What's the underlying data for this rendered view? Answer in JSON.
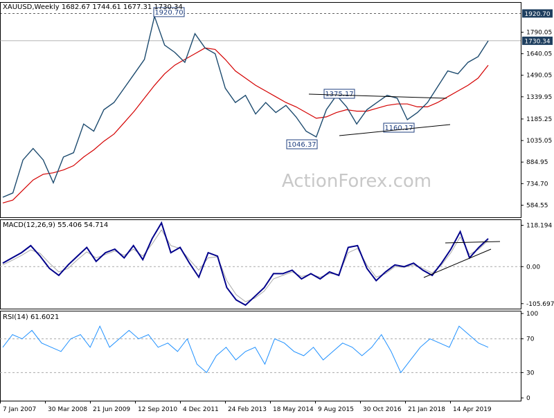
{
  "header": {
    "symbol_line": "XAUUSD,Weekly  1682.67 1744.61 1677.31 1730.34"
  },
  "watermark": "ActionForex.com",
  "colors": {
    "price": "#1c4a6e",
    "ma": "#d40000",
    "macd": "#00008b",
    "macd_signal": "#a9a9a9",
    "rsi": "#1e90ff",
    "grid": "#888888",
    "label_bg": "#1f3f5f"
  },
  "chart_data": [
    {
      "type": "line",
      "panel": "price",
      "title": "XAUUSD,Weekly",
      "ohlc_label": "1682.67 1744.61 1677.31 1730.34",
      "ylim": [
        500,
        2000
      ],
      "y_ticks": [
        "1920.70",
        "1790.05",
        "1730.34",
        "1640.05",
        "1490.05",
        "1339.95",
        "1185.25",
        "1035.05",
        "884.95",
        "734.70",
        "584.55"
      ],
      "x_ticks": [
        "7 Jan 2007",
        "30 Mar 2008",
        "21 Jun 2009",
        "12 Sep 2010",
        "4 Dec 2011",
        "24 Feb 2013",
        "18 May 2014",
        "9 Aug 2015",
        "30 Oct 2016",
        "21 Jan 2018",
        "14 Apr 2019"
      ],
      "x_points": [
        "7 Jan 2007",
        "Jul 2007",
        "Jan 2008",
        "30 Mar 2008",
        "Jul 2008",
        "Oct 2008",
        "Jan 2009",
        "21 Jun 2009",
        "Nov 2009",
        "Jan 2010",
        "Jun 2010",
        "12 Sep 2010",
        "Jan 2011",
        "Apr 2011",
        "Jul 2011",
        "Sep 2011",
        "4 Dec 2011",
        "Feb 2012",
        "Jun 2012",
        "Oct 2012",
        "Jan 2013",
        "24 Feb 2013",
        "Apr 2013",
        "Jun 2013",
        "Sep 2013",
        "Dec 2013",
        "18 May 2014",
        "Sep 2014",
        "Jan 2015",
        "Apr 2015",
        "9 Aug 2015",
        "Dec 2015",
        "Mar 2016",
        "Jul 2016",
        "30 Oct 2016",
        "Dec 2016",
        "Apr 2017",
        "Sep 2017",
        "21 Jan 2018",
        "Apr 2018",
        "Aug 2018",
        "Nov 2018",
        "14 Apr 2019",
        "Jun 2019",
        "Aug 2019",
        "Oct 2019",
        "Jan 2020",
        "Apr 2020",
        "Jun 2020"
      ],
      "series": [
        {
          "values": [
            640,
            670,
            900,
            980,
            900,
            740,
            920,
            950,
            1150,
            1100,
            1250,
            1300,
            1400,
            1500,
            1600,
            1900,
            1700,
            1650,
            1580,
            1780,
            1680,
            1640,
            1400,
            1300,
            1350,
            1220,
            1300,
            1230,
            1280,
            1200,
            1100,
            1060,
            1250,
            1350,
            1270,
            1150,
            1250,
            1300,
            1350,
            1330,
            1180,
            1230,
            1300,
            1410,
            1520,
            1500,
            1580,
            1620,
            1730
          ]
        },
        {
          "values": [
            600,
            620,
            690,
            760,
            800,
            810,
            830,
            860,
            920,
            970,
            1030,
            1080,
            1160,
            1240,
            1330,
            1420,
            1500,
            1560,
            1600,
            1640,
            1680,
            1670,
            1600,
            1520,
            1470,
            1420,
            1380,
            1340,
            1300,
            1270,
            1230,
            1190,
            1200,
            1230,
            1250,
            1240,
            1240,
            1260,
            1280,
            1290,
            1290,
            1270,
            1270,
            1300,
            1340,
            1380,
            1420,
            1470,
            1560
          ]
        }
      ],
      "horizontal_lines": [
        {
          "value": 1920.7,
          "label": "1920.70",
          "style": "dashed"
        },
        {
          "value": 1730.34,
          "label": "1730.34",
          "style": "solid"
        }
      ],
      "annotations": [
        {
          "text": "1920.70",
          "x": "12 Sep 2010",
          "y": 1920.7
        },
        {
          "text": "1375.17",
          "x": "Feb 2016",
          "y": 1375.17
        },
        {
          "text": "1160.17",
          "x": "Oct 2017",
          "y": 1160.17
        },
        {
          "text": "1046.37",
          "x": "Dec 2015",
          "y": 1046.37
        }
      ],
      "trendlines": [
        {
          "from": [
            "Feb 2016",
            1375.17
          ],
          "to": [
            "May 2019",
            1365
          ]
        },
        {
          "from": [
            "Jul 2015",
            1120
          ],
          "to": [
            "May 2019",
            1185
          ]
        }
      ]
    },
    {
      "type": "line",
      "panel": "macd",
      "title": "MACD(12,26,9) 55.406 54.714",
      "ylim": [
        -120,
        135
      ],
      "y_ticks": [
        "118.194",
        "0.00",
        "-105.697"
      ],
      "series": [
        {
          "values": [
            10,
            25,
            40,
            60,
            30,
            -5,
            -25,
            5,
            30,
            55,
            15,
            40,
            50,
            25,
            60,
            20,
            80,
            125,
            40,
            55,
            10,
            -30,
            40,
            30,
            -60,
            -95,
            -110,
            -85,
            -60,
            -20,
            -20,
            -10,
            -35,
            -20,
            -35,
            -15,
            -25,
            55,
            60,
            -5,
            -40,
            -15,
            5,
            0,
            10,
            -10,
            -25,
            10,
            50,
            100,
            25,
            55,
            80
          ]
        },
        {
          "values": [
            5,
            18,
            32,
            48,
            38,
            10,
            -15,
            -5,
            20,
            42,
            25,
            35,
            45,
            32,
            50,
            30,
            65,
            105,
            60,
            52,
            20,
            -10,
            25,
            28,
            -40,
            -80,
            -100,
            -90,
            -70,
            -35,
            -25,
            -15,
            -28,
            -22,
            -30,
            -20,
            -22,
            40,
            52,
            5,
            -30,
            -20,
            0,
            -2,
            5,
            -5,
            -18,
            5,
            40,
            85,
            35,
            50,
            75
          ]
        }
      ]
    },
    {
      "type": "line",
      "panel": "rsi",
      "title": "RSI(14) 61.6021",
      "ylim": [
        0,
        100
      ],
      "y_ticks": [
        "100",
        "70",
        "30",
        "0"
      ],
      "levels": [
        70,
        30
      ],
      "series": [
        {
          "values": [
            60,
            75,
            70,
            80,
            65,
            60,
            55,
            70,
            75,
            60,
            85,
            60,
            70,
            80,
            70,
            75,
            60,
            65,
            55,
            70,
            40,
            30,
            50,
            60,
            45,
            55,
            60,
            40,
            70,
            65,
            55,
            50,
            60,
            45,
            55,
            65,
            60,
            50,
            60,
            75,
            55,
            30,
            45,
            60,
            70,
            65,
            60,
            85,
            75,
            65,
            60
          ]
        }
      ]
    }
  ]
}
